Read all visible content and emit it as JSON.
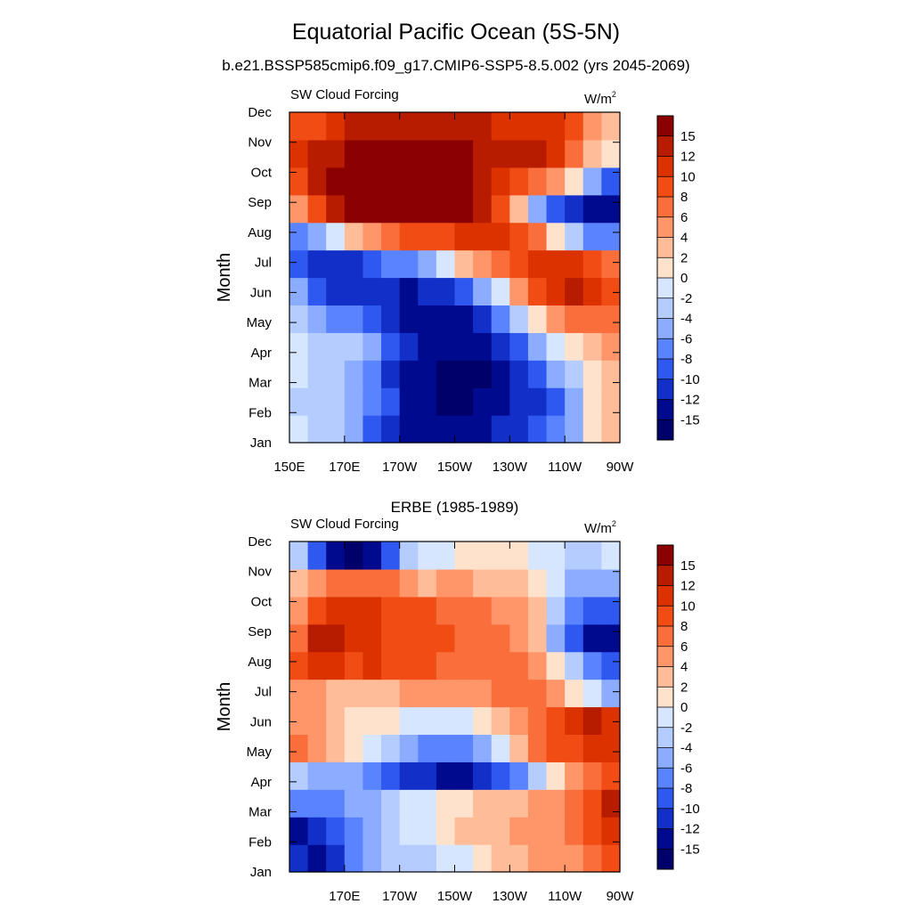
{
  "title": "Equatorial Pacific Ocean (5S-5N)",
  "subtitle": "b.e21.BSSP585cmip6.f09_g17.CMIP6-SSP5-8.5.002 (yrs 2045-2069)",
  "chart_data": [
    {
      "type": "heatmap",
      "title": "",
      "left_label": "SW Cloud Forcing",
      "units": "W/m",
      "units_sup": "2",
      "ylabel": "Month",
      "x_ticks": [
        "150E",
        "170E",
        "170W",
        "150W",
        "130W",
        "110W",
        "90W"
      ],
      "y_ticks": [
        "Jan",
        "Feb",
        "Mar",
        "Apr",
        "May",
        "Jun",
        "Jul",
        "Aug",
        "Sep",
        "Oct",
        "Nov",
        "Dec"
      ],
      "xlim": [
        150,
        270
      ],
      "colorbar_labels": [
        "15",
        "12",
        "10",
        "8",
        "6",
        "4",
        "2",
        "0",
        "-2",
        "-4",
        "-6",
        "-8",
        "-10",
        "-12",
        "-15"
      ],
      "colors": [
        "#8b0000",
        "#b81c00",
        "#dc3200",
        "#f04c14",
        "#fa6e3c",
        "#ff966a",
        "#ffbc98",
        "#ffe2cc",
        "#d6e6ff",
        "#b4ccff",
        "#8cacff",
        "#5a84ff",
        "#2e58f0",
        "#1230c8",
        "#000a8e",
        "#00006a"
      ],
      "grid": [
        [
          -2,
          -3,
          -3,
          -5,
          -9,
          -12,
          -13,
          -14,
          -14,
          -14,
          -13,
          -12,
          -11,
          -10,
          -8,
          -5,
          1,
          3
        ],
        [
          -3,
          -4,
          -4,
          -5,
          -7,
          -10,
          -13,
          -14,
          -16,
          -16,
          -15,
          -13,
          -12,
          -11,
          -9,
          -6,
          0,
          3
        ],
        [
          -2,
          -3,
          -4,
          -6,
          -8,
          -11,
          -14,
          -15,
          -16,
          -16,
          -16,
          -14,
          -12,
          -9,
          -6,
          -3,
          1,
          3
        ],
        [
          -1,
          -3,
          -4,
          -4,
          -6,
          -9,
          -12,
          -13,
          -14,
          -15,
          -14,
          -12,
          -9,
          -5,
          -2,
          1,
          3,
          4
        ],
        [
          -3,
          -5,
          -7,
          -8,
          -10,
          -12,
          -13,
          -15,
          -15,
          -13,
          -11,
          -8,
          -4,
          0,
          4,
          6,
          7,
          7
        ],
        [
          -6,
          -9,
          -11,
          -12,
          -12,
          -12,
          -13,
          -12,
          -11,
          -9,
          -5,
          -1,
          4,
          8,
          10,
          12,
          10,
          8
        ],
        [
          -10,
          -12,
          -11,
          -11,
          -9,
          -8,
          -7,
          -5,
          -2,
          2,
          5,
          7,
          9,
          10,
          11,
          10,
          8,
          6
        ],
        [
          -7,
          -5,
          -2,
          2,
          5,
          7,
          8,
          8,
          9,
          10,
          10,
          10,
          9,
          6,
          1,
          -4,
          -7,
          -8
        ],
        [
          4,
          9,
          14,
          17,
          17,
          17,
          17,
          17,
          17,
          16,
          14,
          9,
          2,
          -6,
          -10,
          -12,
          -13,
          -15
        ],
        [
          8,
          12,
          16,
          17,
          17,
          17,
          17,
          17,
          17,
          16,
          14,
          11,
          8,
          6,
          4,
          0,
          -6,
          -10
        ],
        [
          10,
          12,
          13,
          15,
          16,
          16,
          17,
          17,
          16,
          15,
          14,
          13,
          13,
          12,
          11,
          7,
          2,
          0
        ],
        [
          8,
          9,
          10,
          12,
          13,
          14,
          14,
          13,
          12,
          12,
          12,
          11,
          11,
          10,
          10,
          8,
          4,
          2
        ]
      ]
    },
    {
      "type": "heatmap",
      "title": "ERBE (1985-1989)",
      "left_label": "SW Cloud Forcing",
      "units": "W/m",
      "units_sup": "2",
      "ylabel": "Month",
      "x_ticks": [
        "170E",
        "170W",
        "150W",
        "130W",
        "110W",
        "90W"
      ],
      "y_ticks": [
        "Jan",
        "Feb",
        "Mar",
        "Apr",
        "May",
        "Jun",
        "Jul",
        "Aug",
        "Sep",
        "Oct",
        "Nov",
        "Dec"
      ],
      "xlim": [
        150,
        270
      ],
      "colorbar_labels": [
        "15",
        "12",
        "10",
        "8",
        "6",
        "4",
        "2",
        "0",
        "-2",
        "-4",
        "-6",
        "-8",
        "-10",
        "-12",
        "-15"
      ],
      "colors": [
        "#8b0000",
        "#b81c00",
        "#dc3200",
        "#f04c14",
        "#fa6e3c",
        "#ff966a",
        "#ffbc98",
        "#ffe2cc",
        "#d6e6ff",
        "#b4ccff",
        "#8cacff",
        "#5a84ff",
        "#2e58f0",
        "#1230c8",
        "#000a8e",
        "#00006a"
      ],
      "grid": [
        [
          -12,
          -14,
          -12,
          -8,
          -5,
          -4,
          -4,
          -3,
          -2,
          -1,
          0,
          2,
          3,
          4,
          4,
          5,
          6,
          9
        ],
        [
          -13,
          -12,
          -10,
          -8,
          -6,
          -4,
          -2,
          -1,
          1,
          2,
          3,
          3,
          4,
          4,
          5,
          6,
          8,
          11
        ],
        [
          -8,
          -8,
          -7,
          -6,
          -5,
          -3,
          -2,
          -1,
          0,
          1,
          2,
          3,
          3,
          4,
          5,
          6,
          8,
          13
        ],
        [
          -4,
          -5,
          -6,
          -6,
          -8,
          -10,
          -11,
          -12,
          -13,
          -13,
          -12,
          -10,
          -7,
          -3,
          1,
          4,
          6,
          8
        ],
        [
          6,
          4,
          2,
          0,
          -2,
          -4,
          -5,
          -7,
          -8,
          -7,
          -5,
          -2,
          2,
          6,
          8,
          9,
          10,
          10
        ],
        [
          5,
          4,
          3,
          1,
          1,
          0,
          -1,
          -2,
          -2,
          -1,
          0,
          2,
          4,
          7,
          9,
          11,
          12,
          10
        ],
        [
          4,
          4,
          2,
          2,
          2,
          3,
          4,
          4,
          5,
          5,
          5,
          6,
          6,
          6,
          4,
          1,
          -2,
          -6
        ],
        [
          9,
          11,
          10,
          9,
          10,
          9,
          8,
          8,
          7,
          7,
          6,
          7,
          6,
          4,
          1,
          -4,
          -8,
          -10
        ],
        [
          7,
          12,
          12,
          10,
          11,
          9,
          8,
          8,
          8,
          7,
          7,
          6,
          5,
          2,
          -6,
          -10,
          -13,
          -15
        ],
        [
          4,
          8,
          10,
          11,
          10,
          9,
          8,
          8,
          7,
          7,
          6,
          5,
          4,
          2,
          -3,
          -8,
          -10,
          -10
        ],
        [
          2,
          4,
          6,
          7,
          7,
          6,
          4,
          3,
          4,
          4,
          3,
          3,
          2,
          1,
          -2,
          -5,
          -6,
          -5
        ],
        [
          -4,
          -10,
          -14,
          -16,
          -14,
          -10,
          -4,
          -2,
          -1,
          0,
          0,
          1,
          1,
          -1,
          -2,
          -3,
          -3,
          -2
        ]
      ]
    }
  ]
}
